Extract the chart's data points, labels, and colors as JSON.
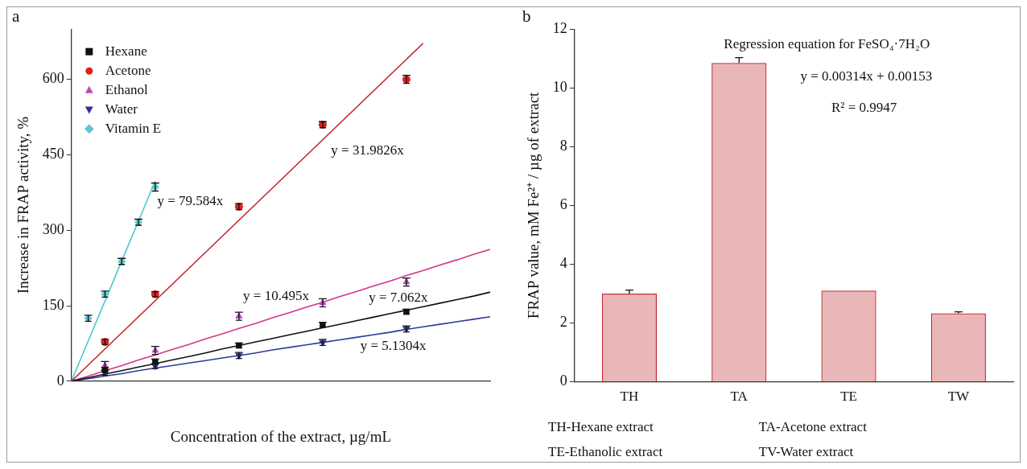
{
  "chart_data": [
    {
      "type": "scatter",
      "title": "a",
      "xlabel": "Concentration of the extract, µg/mL",
      "ylabel": "Increase in FRAP activity, %",
      "categories": [
        null,
        null,
        null,
        null,
        null,
        null,
        null,
        null,
        null,
        null,
        null,
        null,
        null,
        null,
        null,
        null,
        null,
        null,
        null,
        null,
        null,
        null,
        null,
        null,
        null,
        null
      ],
      "ylim": [
        0,
        700
      ],
      "yticks": [
        0,
        150,
        300,
        450,
        600
      ],
      "grid": false,
      "legend": "top left",
      "series": [
        {
          "name": "Hexane",
          "color": "#111111",
          "marker": "square",
          "values": [
            null,
            null,
            22,
            null,
            null,
            39,
            null,
            null,
            null,
            null,
            71,
            null,
            null,
            null,
            null,
            112,
            null,
            null,
            null,
            null,
            138,
            null,
            null,
            null,
            null,
            null
          ],
          "errors": [
            null,
            null,
            5,
            null,
            null,
            5,
            null,
            null,
            null,
            null,
            5,
            null,
            null,
            null,
            null,
            5,
            null,
            null,
            null,
            null,
            5,
            null,
            null,
            null,
            null,
            null
          ]
        },
        {
          "name": "Acetone",
          "color": "#e0201f",
          "marker": "circle",
          "values": [
            null,
            null,
            78,
            null,
            null,
            173,
            null,
            null,
            null,
            null,
            347,
            null,
            null,
            null,
            null,
            510,
            null,
            null,
            null,
            null,
            600,
            null,
            null,
            null,
            null,
            null
          ],
          "errors": [
            null,
            null,
            5,
            null,
            null,
            5,
            null,
            null,
            null,
            null,
            6,
            null,
            null,
            null,
            null,
            6,
            null,
            null,
            null,
            null,
            8,
            null,
            null,
            null,
            null,
            null
          ]
        },
        {
          "name": "Ethanol",
          "color": "#b84fb8",
          "marker": "triangle",
          "values": [
            null,
            null,
            31,
            null,
            null,
            61,
            null,
            null,
            null,
            null,
            129,
            null,
            null,
            null,
            null,
            156,
            null,
            null,
            null,
            null,
            197,
            null,
            null,
            null,
            null,
            null
          ],
          "errors": [
            null,
            null,
            8,
            null,
            null,
            8,
            null,
            null,
            null,
            null,
            8,
            null,
            null,
            null,
            null,
            8,
            null,
            null,
            null,
            null,
            8,
            null,
            null,
            null,
            null,
            null
          ]
        },
        {
          "name": "Water",
          "color": "#2e3192",
          "marker": "triangle-down",
          "values": [
            null,
            null,
            17,
            null,
            null,
            30,
            null,
            null,
            null,
            null,
            51,
            null,
            null,
            null,
            null,
            77,
            null,
            null,
            null,
            null,
            104,
            null,
            null,
            null,
            null,
            null
          ],
          "errors": [
            null,
            null,
            5,
            null,
            null,
            5,
            null,
            null,
            null,
            null,
            6,
            null,
            null,
            null,
            null,
            6,
            null,
            null,
            null,
            null,
            6,
            null,
            null,
            null,
            null,
            null
          ]
        },
        {
          "name": "Vitamin E",
          "color": "#5bc8d0",
          "marker": "diamond",
          "values": [
            null,
            125,
            173,
            238,
            316,
            386,
            null,
            null,
            null,
            null,
            null,
            null,
            null,
            null,
            null,
            null,
            null,
            null,
            null,
            null,
            null,
            null,
            null,
            null,
            null,
            null
          ],
          "errors": [
            null,
            6,
            6,
            6,
            6,
            8,
            null,
            null,
            null,
            null,
            null,
            null,
            null,
            null,
            null,
            null,
            null,
            null,
            null,
            null,
            null,
            null,
            null,
            null,
            null,
            null
          ]
        },
        {
          "type": "line",
          "color": "#111111",
          "values": [
            0,
            7,
            14,
            21,
            28,
            35,
            42,
            49,
            56,
            64,
            71,
            78,
            85,
            92,
            99,
            106,
            113,
            120,
            127,
            134,
            141,
            148,
            155,
            162,
            169,
            177
          ]
        },
        {
          "type": "line",
          "color": "#c0282d",
          "values": [
            0,
            32,
            64,
            96,
            128,
            160,
            192,
            224,
            256,
            288,
            320,
            352,
            384,
            416,
            448,
            480,
            512,
            544,
            576,
            608,
            640,
            672,
            null,
            null,
            null,
            null
          ]
        },
        {
          "type": "line",
          "color": "#d6338a",
          "values": [
            0,
            10,
            21,
            31,
            42,
            52,
            63,
            73,
            84,
            94,
            105,
            115,
            126,
            136,
            147,
            157,
            168,
            178,
            189,
            199,
            210,
            220,
            231,
            241,
            252,
            262
          ]
        },
        {
          "type": "line",
          "color": "#2c3b9e",
          "values": [
            0,
            5,
            10,
            15,
            21,
            26,
            31,
            36,
            41,
            46,
            51,
            56,
            62,
            67,
            72,
            77,
            82,
            87,
            92,
            97,
            103,
            108,
            113,
            118,
            123,
            128
          ]
        },
        {
          "type": "line",
          "color": "#4cc7cf",
          "values": [
            0,
            80,
            159,
            239,
            318,
            398,
            null,
            null,
            null,
            null,
            null,
            null,
            null,
            null,
            null,
            null,
            null,
            null,
            null,
            null,
            null,
            null,
            null,
            null,
            null,
            null
          ]
        }
      ],
      "annotations": [
        "y = 79.584x",
        "y = 31.9826x",
        "y = 10.495x",
        "y = 7.062x",
        "y = 5.1304x"
      ]
    },
    {
      "type": "bar",
      "title": "b",
      "ylabel": "FRAP value, mM Fe²⁺ / µg of extract",
      "categories": [
        "TH",
        "TA",
        "TE",
        "TW"
      ],
      "values": [
        3.0,
        10.85,
        3.1,
        2.33
      ],
      "errors": [
        0.12,
        0.18,
        null,
        0.05
      ],
      "color": "#c0272d",
      "ylim": [
        0,
        12
      ],
      "yticks": [
        0,
        2,
        4,
        6,
        8,
        10,
        12
      ],
      "grid": false,
      "legend": false,
      "annotations": [
        "Regression equation for FeSO₄·7H₂O",
        "y = 0.00314x + 0.00153",
        "R² = 0.9947",
        "TH-Hexane extract",
        "TA-Acetone extract",
        "TE-Ethanolic extract",
        "TV-Water extract"
      ]
    }
  ]
}
